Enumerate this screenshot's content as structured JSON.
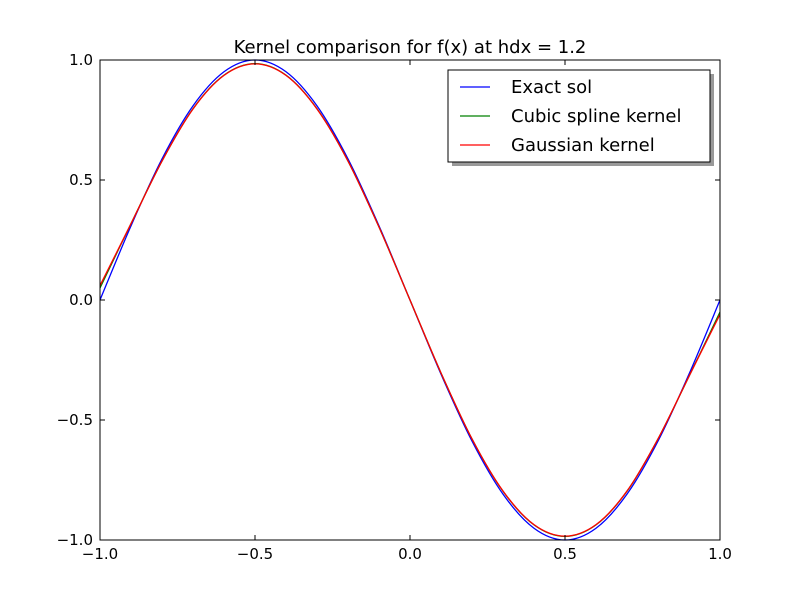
{
  "chart_data": {
    "type": "line",
    "title": "Kernel comparison for f(x) at hdx = 1.2",
    "xlabel": "",
    "ylabel": "",
    "xlim": [
      -1.0,
      1.0
    ],
    "ylim": [
      -1.0,
      1.0
    ],
    "x_ticks": [
      -1.0,
      -0.5,
      0.0,
      0.5,
      1.0
    ],
    "x_tick_labels": [
      "−1.0",
      "−0.5",
      "0.0",
      "0.5",
      "1.0"
    ],
    "y_ticks": [
      -1.0,
      -0.5,
      0.0,
      0.5,
      1.0
    ],
    "y_tick_labels": [
      "−1.0",
      "−0.5",
      "0.0",
      "0.5",
      "1.0"
    ],
    "grid": false,
    "legend_position": "top-right",
    "x": [
      -1.0,
      -0.9,
      -0.8,
      -0.7,
      -0.6,
      -0.5,
      -0.4,
      -0.3,
      -0.2,
      -0.1,
      0.0,
      0.1,
      0.2,
      0.3,
      0.4,
      0.5,
      0.6,
      0.7,
      0.8,
      0.9,
      1.0
    ],
    "series": [
      {
        "name": "Exact sol",
        "color": "#0000ff",
        "values": [
          0.0,
          0.309,
          0.588,
          0.809,
          0.951,
          1.0,
          0.951,
          0.809,
          0.588,
          0.309,
          0.0,
          -0.309,
          -0.588,
          -0.809,
          -0.951,
          -1.0,
          -0.951,
          -0.809,
          -0.588,
          -0.309,
          0.0
        ]
      },
      {
        "name": "Cubic spline kernel",
        "color": "#008000",
        "values": [
          0.05,
          0.318,
          0.579,
          0.797,
          0.937,
          0.985,
          0.937,
          0.797,
          0.579,
          0.304,
          0.0,
          -0.304,
          -0.579,
          -0.797,
          -0.937,
          -0.985,
          -0.937,
          -0.797,
          -0.579,
          -0.318,
          -0.05
        ]
      },
      {
        "name": "Gaussian kernel",
        "color": "#ff0000",
        "values": [
          0.06,
          0.318,
          0.579,
          0.796,
          0.936,
          0.984,
          0.936,
          0.796,
          0.579,
          0.304,
          0.0,
          -0.304,
          -0.579,
          -0.796,
          -0.936,
          -0.984,
          -0.936,
          -0.796,
          -0.579,
          -0.318,
          -0.06
        ]
      }
    ]
  }
}
